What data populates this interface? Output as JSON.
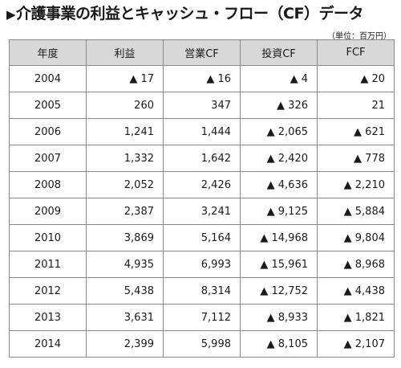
{
  "title": "介護事業の利益とキャッシュ・フロー（CF）データ",
  "title_marker": "▶",
  "unit": "（単位：百万円）",
  "columns": [
    "年度",
    "利益",
    "営業CF",
    "投資CF",
    "FCF"
  ],
  "rows": [
    {
      "year": "2004",
      "profit": "▲ 17",
      "operating_cf": "▲ 16",
      "investing_cf": "▲ 4",
      "fcf": "▲ 20"
    },
    {
      "year": "2005",
      "profit": "260",
      "operating_cf": "347",
      "investing_cf": "▲ 326",
      "fcf": "21"
    },
    {
      "year": "2006",
      "profit": "1,241",
      "operating_cf": "1,444",
      "investing_cf": "▲ 2,065",
      "fcf": "▲ 621"
    },
    {
      "year": "2007",
      "profit": "1,332",
      "operating_cf": "1,642",
      "investing_cf": "▲ 2,420",
      "fcf": "▲ 778"
    },
    {
      "year": "2008",
      "profit": "2,052",
      "operating_cf": "2,426",
      "investing_cf": "▲ 4,636",
      "fcf": "▲ 2,210"
    },
    {
      "year": "2009",
      "profit": "2,387",
      "operating_cf": "3,241",
      "investing_cf": "▲ 9,125",
      "fcf": "▲ 5,884"
    },
    {
      "year": "2010",
      "profit": "3,869",
      "operating_cf": "5,164",
      "investing_cf": "▲ 14,968",
      "fcf": "▲ 9,804"
    },
    {
      "year": "2011",
      "profit": "4,935",
      "operating_cf": "6,993",
      "investing_cf": "▲ 15,961",
      "fcf": "▲ 8,968"
    },
    {
      "year": "2012",
      "profit": "5,438",
      "operating_cf": "8,314",
      "investing_cf": "▲ 12,752",
      "fcf": "▲ 4,438"
    },
    {
      "year": "2013",
      "profit": "3,631",
      "operating_cf": "7,112",
      "investing_cf": "▲ 8,933",
      "fcf": "▲ 1,821"
    },
    {
      "year": "2014",
      "profit": "2,399",
      "operating_cf": "5,998",
      "investing_cf": "▲ 8,105",
      "fcf": "▲ 2,107"
    }
  ],
  "colors": {
    "header_bg": "#d8d8d8",
    "border": "#8a8a8a",
    "text": "#1a1a1a"
  }
}
